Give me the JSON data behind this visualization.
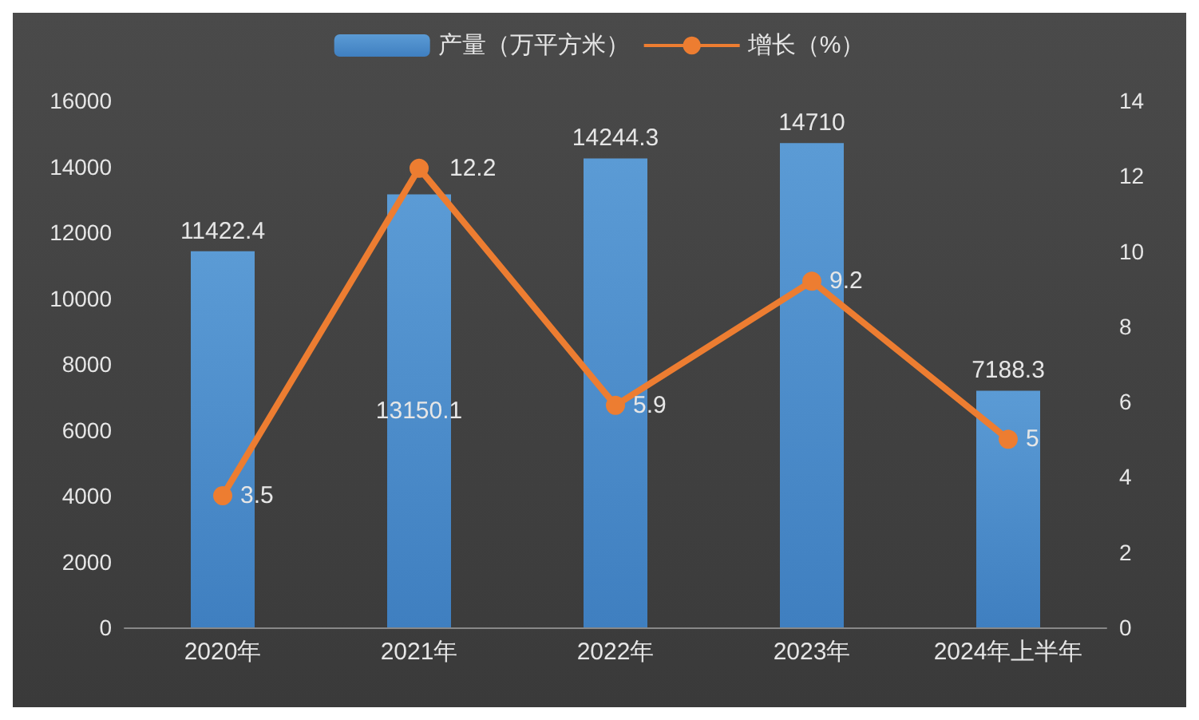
{
  "chart_data": {
    "type": "bar",
    "categories": [
      "2020年",
      "2021年",
      "2022年",
      "2023年",
      "2024年上半年"
    ],
    "series": [
      {
        "name": "产量（万平方米）",
        "type": "bar",
        "color": "#5b9bd5",
        "values": [
          11422.4,
          13150.1,
          14244.3,
          14710,
          7188.3
        ]
      },
      {
        "name": "增长（%）",
        "type": "line",
        "axis": "y2",
        "color": "#ed7d31",
        "values": [
          3.5,
          12.2,
          5.9,
          9.2,
          5
        ]
      }
    ],
    "ylim": [
      0,
      16000
    ],
    "yticks": [
      0,
      2000,
      4000,
      6000,
      8000,
      10000,
      12000,
      14000,
      16000
    ],
    "y2lim": [
      0,
      14
    ],
    "y2ticks": [
      0,
      2,
      4,
      6,
      8,
      10,
      12,
      14
    ],
    "data_labels": true,
    "legend": "top",
    "grid": false,
    "marker": "circle"
  }
}
